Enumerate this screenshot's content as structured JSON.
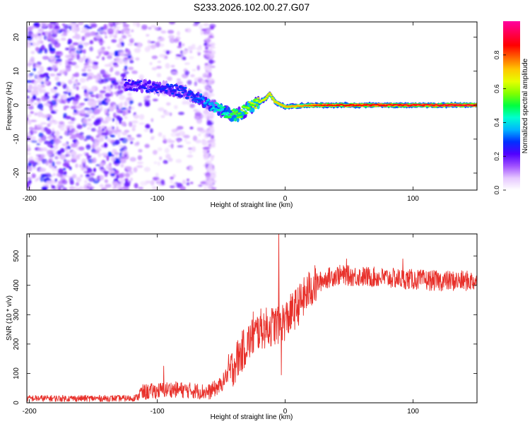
{
  "title": "S233.2026.102.00.27.G07",
  "chart_data": [
    {
      "type": "heatmap",
      "title": "S233.2026.102.00.27.G07",
      "xlabel": "Height of straight line (km)",
      "ylabel": "Frequency (Hz)",
      "xlim": [
        -202,
        150
      ],
      "ylim": [
        -25,
        24.5
      ],
      "xticks": [
        -200,
        -100,
        0,
        100
      ],
      "yticks": [
        -20,
        -10,
        0,
        10,
        20
      ],
      "colorbar": {
        "label": "Normalized spectral amplitude",
        "range": [
          0,
          1
        ],
        "ticks": [
          0.0,
          0.2,
          0.4,
          0.6,
          0.8
        ],
        "tick_labels": [
          "0.0",
          "0.2",
          "0.4",
          "0.6",
          "0.8"
        ],
        "colormap": [
          "#ffffff",
          "#e6c8ff",
          "#a050ff",
          "#5000ff",
          "#0030ff",
          "#00b4ff",
          "#00ffd0",
          "#00ff40",
          "#80ff00",
          "#e6ff00",
          "#ffc800",
          "#ff6400",
          "#ff0000",
          "#ff0050",
          "#ff00a0"
        ]
      },
      "ridge": [
        {
          "x": -125,
          "y": 6
        },
        {
          "x": -110,
          "y": 5.5
        },
        {
          "x": -95,
          "y": 5
        },
        {
          "x": -80,
          "y": 4
        },
        {
          "x": -70,
          "y": 2.5
        },
        {
          "x": -60,
          "y": 0.5
        },
        {
          "x": -50,
          "y": -1.5
        },
        {
          "x": -45,
          "y": -2.5
        },
        {
          "x": -38,
          "y": -3
        },
        {
          "x": -33,
          "y": -2
        },
        {
          "x": -28,
          "y": -0.5
        },
        {
          "x": -20,
          "y": 0.8
        },
        {
          "x": -15,
          "y": 2
        },
        {
          "x": -12,
          "y": 3.5
        },
        {
          "x": -8,
          "y": 1
        },
        {
          "x": 0,
          "y": -0.5
        },
        {
          "x": 20,
          "y": 0
        },
        {
          "x": 150,
          "y": 0
        }
      ],
      "ridge_amplitude": [
        {
          "x": -125,
          "a": 0.25
        },
        {
          "x": -70,
          "a": 0.3
        },
        {
          "x": -40,
          "a": 0.55
        },
        {
          "x": -12,
          "a": 0.7
        },
        {
          "x": 10,
          "a": 0.75
        },
        {
          "x": 30,
          "a": 0.85
        },
        {
          "x": 150,
          "a": 0.9
        }
      ]
    },
    {
      "type": "line",
      "xlabel": "Height of straight line (km)",
      "ylabel": "SNR (10 * v/v)",
      "xlim": [
        -202,
        150
      ],
      "ylim": [
        0,
        575
      ],
      "xticks": [
        -200,
        -100,
        0,
        100
      ],
      "yticks": [
        0,
        100,
        200,
        300,
        400,
        500
      ],
      "series": [
        {
          "name": "SNR",
          "color": "#e8302a",
          "trend": [
            {
              "x": -202,
              "y": 15
            },
            {
              "x": -120,
              "y": 15
            },
            {
              "x": -110,
              "y": 25
            },
            {
              "x": -90,
              "y": 35
            },
            {
              "x": -70,
              "y": 30
            },
            {
              "x": -60,
              "y": 25
            },
            {
              "x": -50,
              "y": 50
            },
            {
              "x": -40,
              "y": 130
            },
            {
              "x": -30,
              "y": 200
            },
            {
              "x": -20,
              "y": 250
            },
            {
              "x": -10,
              "y": 260
            },
            {
              "x": 0,
              "y": 280
            },
            {
              "x": 10,
              "y": 330
            },
            {
              "x": 20,
              "y": 390
            },
            {
              "x": 30,
              "y": 420
            },
            {
              "x": 40,
              "y": 435
            },
            {
              "x": 60,
              "y": 430
            },
            {
              "x": 80,
              "y": 425
            },
            {
              "x": 100,
              "y": 420
            },
            {
              "x": 120,
              "y": 415
            },
            {
              "x": 150,
              "y": 415
            }
          ],
          "spikes": [
            {
              "x": -95,
              "y": 125
            },
            {
              "x": -25,
              "y": 310
            },
            {
              "x": -5,
              "y": 575
            },
            {
              "x": -3,
              "y": 95
            },
            {
              "x": 48,
              "y": 490
            },
            {
              "x": 92,
              "y": 490
            }
          ]
        }
      ]
    }
  ]
}
